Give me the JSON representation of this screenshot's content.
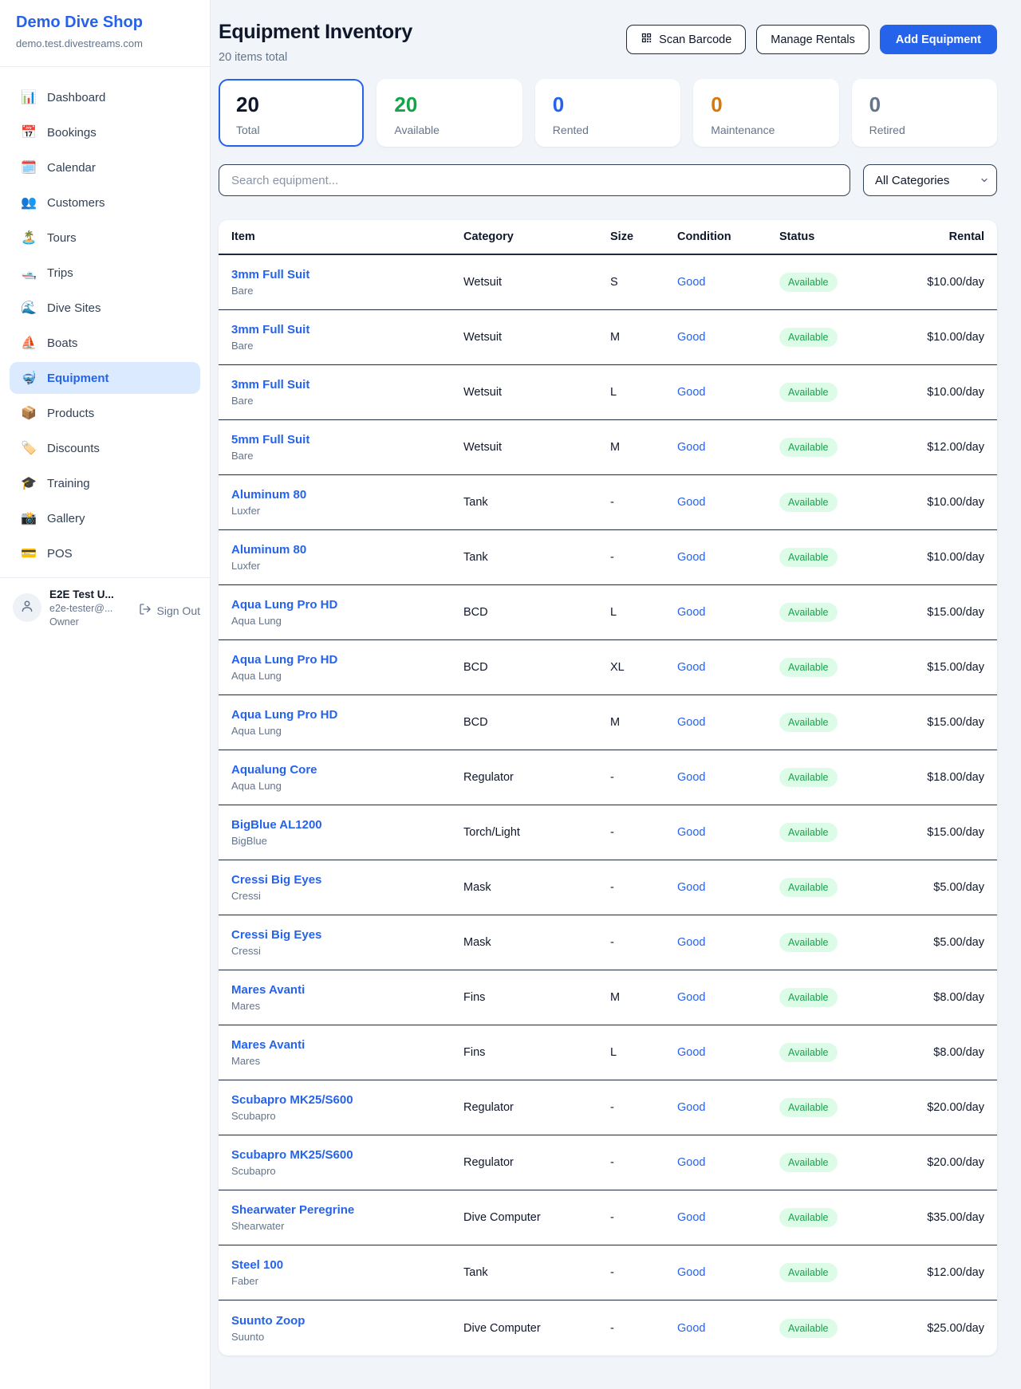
{
  "colors": {
    "accent": "#2563eb",
    "available_green": "#16a34a",
    "maintenance_orange": "#d97706",
    "retired_gray": "#64748b",
    "status_pill_bg": "#dcfce7"
  },
  "sidebar": {
    "brand": "Demo Dive Shop",
    "domain": "demo.test.divestreams.com",
    "items": [
      {
        "icon": "bar-chart",
        "glyph": "📊",
        "label": "Dashboard",
        "active": false
      },
      {
        "icon": "calendar-date",
        "glyph": "📅",
        "label": "Bookings",
        "active": false
      },
      {
        "icon": "calendar-pad",
        "glyph": "🗓️",
        "label": "Calendar",
        "active": false
      },
      {
        "icon": "people",
        "glyph": "👥",
        "label": "Customers",
        "active": false
      },
      {
        "icon": "palm-island",
        "glyph": "🏝️",
        "label": "Tours",
        "active": false
      },
      {
        "icon": "motorboat",
        "glyph": "🛥️",
        "label": "Trips",
        "active": false
      },
      {
        "icon": "wave",
        "glyph": "🌊",
        "label": "Dive Sites",
        "active": false
      },
      {
        "icon": "sailboat",
        "glyph": "⛵",
        "label": "Boats",
        "active": false
      },
      {
        "icon": "diving-mask",
        "glyph": "🤿",
        "label": "Equipment",
        "active": true
      },
      {
        "icon": "package",
        "glyph": "📦",
        "label": "Products",
        "active": false
      },
      {
        "icon": "price-tag",
        "glyph": "🏷️",
        "label": "Discounts",
        "active": false
      },
      {
        "icon": "graduation-cap",
        "glyph": "🎓",
        "label": "Training",
        "active": false
      },
      {
        "icon": "camera-flash",
        "glyph": "📸",
        "label": "Gallery",
        "active": false
      },
      {
        "icon": "credit-card",
        "glyph": "💳",
        "label": "POS",
        "active": false
      }
    ],
    "user": {
      "name": "E2E Test U...",
      "email": "e2e-tester@...",
      "role": "Owner",
      "sign_out_label": "Sign Out"
    }
  },
  "header": {
    "title": "Equipment Inventory",
    "subtitle": "20 items total",
    "buttons": {
      "scan": "Scan Barcode",
      "manage": "Manage Rentals",
      "add": "Add Equipment"
    }
  },
  "stats": [
    {
      "value": "20",
      "label": "Total",
      "color": "#0f172a",
      "selected": true
    },
    {
      "value": "20",
      "label": "Available",
      "color": "#16a34a",
      "selected": false
    },
    {
      "value": "0",
      "label": "Rented",
      "color": "#2563eb",
      "selected": false
    },
    {
      "value": "0",
      "label": "Maintenance",
      "color": "#d97706",
      "selected": false
    },
    {
      "value": "0",
      "label": "Retired",
      "color": "#64748b",
      "selected": false
    }
  ],
  "filters": {
    "search_placeholder": "Search equipment...",
    "category_selected": "All Categories"
  },
  "table": {
    "columns": [
      "Item",
      "Category",
      "Size",
      "Condition",
      "Status",
      "Rental"
    ],
    "rows": [
      {
        "name": "3mm Full Suit",
        "brand": "Bare",
        "category": "Wetsuit",
        "size": "S",
        "condition": "Good",
        "status": "Available",
        "rental": "$10.00/day"
      },
      {
        "name": "3mm Full Suit",
        "brand": "Bare",
        "category": "Wetsuit",
        "size": "M",
        "condition": "Good",
        "status": "Available",
        "rental": "$10.00/day"
      },
      {
        "name": "3mm Full Suit",
        "brand": "Bare",
        "category": "Wetsuit",
        "size": "L",
        "condition": "Good",
        "status": "Available",
        "rental": "$10.00/day"
      },
      {
        "name": "5mm Full Suit",
        "brand": "Bare",
        "category": "Wetsuit",
        "size": "M",
        "condition": "Good",
        "status": "Available",
        "rental": "$12.00/day"
      },
      {
        "name": "Aluminum 80",
        "brand": "Luxfer",
        "category": "Tank",
        "size": "-",
        "condition": "Good",
        "status": "Available",
        "rental": "$10.00/day"
      },
      {
        "name": "Aluminum 80",
        "brand": "Luxfer",
        "category": "Tank",
        "size": "-",
        "condition": "Good",
        "status": "Available",
        "rental": "$10.00/day"
      },
      {
        "name": "Aqua Lung Pro HD",
        "brand": "Aqua Lung",
        "category": "BCD",
        "size": "L",
        "condition": "Good",
        "status": "Available",
        "rental": "$15.00/day"
      },
      {
        "name": "Aqua Lung Pro HD",
        "brand": "Aqua Lung",
        "category": "BCD",
        "size": "XL",
        "condition": "Good",
        "status": "Available",
        "rental": "$15.00/day"
      },
      {
        "name": "Aqua Lung Pro HD",
        "brand": "Aqua Lung",
        "category": "BCD",
        "size": "M",
        "condition": "Good",
        "status": "Available",
        "rental": "$15.00/day"
      },
      {
        "name": "Aqualung Core",
        "brand": "Aqua Lung",
        "category": "Regulator",
        "size": "-",
        "condition": "Good",
        "status": "Available",
        "rental": "$18.00/day"
      },
      {
        "name": "BigBlue AL1200",
        "brand": "BigBlue",
        "category": "Torch/Light",
        "size": "-",
        "condition": "Good",
        "status": "Available",
        "rental": "$15.00/day"
      },
      {
        "name": "Cressi Big Eyes",
        "brand": "Cressi",
        "category": "Mask",
        "size": "-",
        "condition": "Good",
        "status": "Available",
        "rental": "$5.00/day"
      },
      {
        "name": "Cressi Big Eyes",
        "brand": "Cressi",
        "category": "Mask",
        "size": "-",
        "condition": "Good",
        "status": "Available",
        "rental": "$5.00/day"
      },
      {
        "name": "Mares Avanti",
        "brand": "Mares",
        "category": "Fins",
        "size": "M",
        "condition": "Good",
        "status": "Available",
        "rental": "$8.00/day"
      },
      {
        "name": "Mares Avanti",
        "brand": "Mares",
        "category": "Fins",
        "size": "L",
        "condition": "Good",
        "status": "Available",
        "rental": "$8.00/day"
      },
      {
        "name": "Scubapro MK25/S600",
        "brand": "Scubapro",
        "category": "Regulator",
        "size": "-",
        "condition": "Good",
        "status": "Available",
        "rental": "$20.00/day"
      },
      {
        "name": "Scubapro MK25/S600",
        "brand": "Scubapro",
        "category": "Regulator",
        "size": "-",
        "condition": "Good",
        "status": "Available",
        "rental": "$20.00/day"
      },
      {
        "name": "Shearwater Peregrine",
        "brand": "Shearwater",
        "category": "Dive Computer",
        "size": "-",
        "condition": "Good",
        "status": "Available",
        "rental": "$35.00/day"
      },
      {
        "name": "Steel 100",
        "brand": "Faber",
        "category": "Tank",
        "size": "-",
        "condition": "Good",
        "status": "Available",
        "rental": "$12.00/day"
      },
      {
        "name": "Suunto Zoop",
        "brand": "Suunto",
        "category": "Dive Computer",
        "size": "-",
        "condition": "Good",
        "status": "Available",
        "rental": "$25.00/day"
      }
    ]
  }
}
